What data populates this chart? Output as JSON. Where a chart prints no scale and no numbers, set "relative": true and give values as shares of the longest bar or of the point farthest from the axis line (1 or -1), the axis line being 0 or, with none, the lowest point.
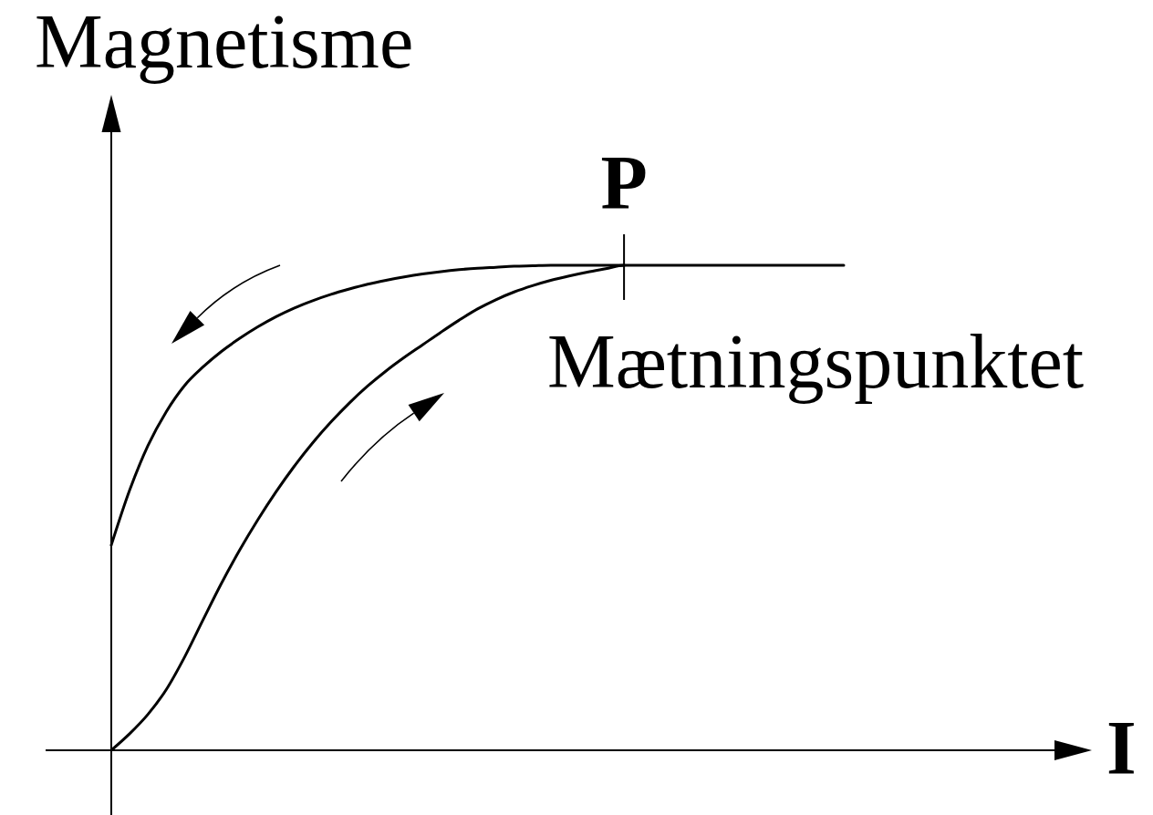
{
  "chart_data": {
    "type": "line",
    "relative": true,
    "ylabel": "Magnetisme",
    "xlabel": "I",
    "categories": [
      null,
      null,
      null,
      null,
      null,
      null,
      null,
      null,
      null,
      null,
      null,
      null,
      null,
      null,
      null,
      null,
      null,
      null,
      null,
      null,
      null,
      null,
      null,
      null,
      null,
      null,
      null,
      null,
      null,
      null,
      null,
      null,
      null,
      null,
      null,
      null,
      null,
      null,
      null,
      null,
      null
    ],
    "series": [
      {
        "color": "#000000",
        "values": [
          0,
          0.034,
          0.074,
          0.125,
          0.192,
          0.268,
          0.343,
          0.412,
          0.475,
          0.533,
          0.586,
          0.634,
          0.677,
          0.716,
          0.751,
          0.782,
          0.81,
          0.836,
          0.862,
          0.887,
          0.91,
          0.929,
          0.945,
          0.958,
          0.969,
          0.978,
          0.986,
          0.993,
          1,
          1,
          1,
          1,
          1,
          1,
          1,
          1,
          1,
          1,
          1,
          1,
          1
        ]
      },
      {
        "color": "#000000",
        "values": [
          0.423,
          0.536,
          0.628,
          0.698,
          0.752,
          0.79,
          0.822,
          0.849,
          0.873,
          0.894,
          0.912,
          0.927,
          0.94,
          0.951,
          0.961,
          0.969,
          0.976,
          0.982,
          0.987,
          0.991,
          0.994,
          0.996,
          0.998,
          0.999,
          1,
          1,
          1,
          1,
          1,
          null,
          null,
          null,
          null,
          null,
          null,
          null,
          null,
          null,
          null,
          null,
          null
        ]
      }
    ],
    "annotations": [
      {
        "text": "P",
        "y": 1
      },
      {
        "text": "Mætningspunktet",
        "y": 1
      }
    ]
  }
}
